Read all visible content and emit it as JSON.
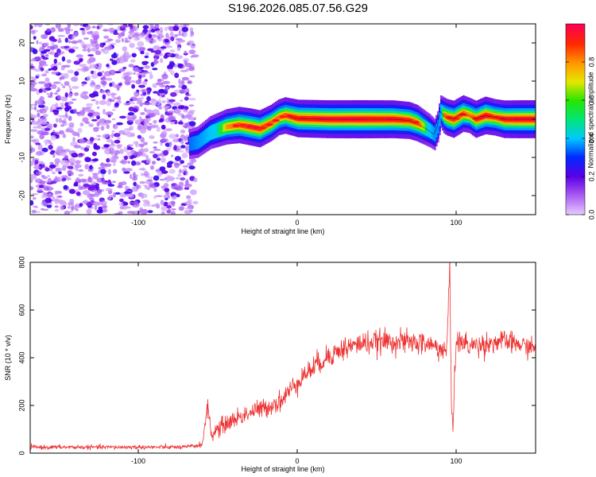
{
  "title": "S196.2026.085.07.56.G29",
  "chart_data": [
    {
      "type": "heatmap",
      "name": "spectrogram",
      "xlabel": "Height of straight line (km)",
      "ylabel": "Frequency (Hz)",
      "xlim": [
        -168,
        150
      ],
      "ylim": [
        -25,
        25
      ],
      "xticks": [
        -100,
        0,
        100
      ],
      "yticks": [
        -20,
        -10,
        0,
        10,
        20
      ],
      "noise_region": {
        "x_range": [
          -168,
          -66
        ],
        "y_range": [
          -25,
          25
        ],
        "typical_amplitude": [
          0.05,
          0.25
        ]
      },
      "ridge": {
        "x": [
          -68,
          -63,
          -55,
          -45,
          -37,
          -30,
          -24,
          -17,
          -12,
          -8,
          0,
          20,
          40,
          60,
          70,
          75,
          79,
          83,
          86,
          88,
          90,
          92,
          94,
          98,
          104,
          108,
          112,
          118,
          124,
          130,
          140,
          150
        ],
        "frequency": [
          -6.5,
          -6,
          -3.5,
          -2,
          -1.5,
          -2,
          -2.5,
          -1,
          0.5,
          1,
          0.2,
          0,
          0,
          0,
          -0.3,
          -1,
          -2,
          -3,
          -4,
          -2,
          2,
          1,
          0.5,
          0,
          1.5,
          1,
          0,
          1,
          0.5,
          0,
          0,
          0
        ],
        "amplitude": [
          0.3,
          0.4,
          0.55,
          0.75,
          0.85,
          0.9,
          0.9,
          0.85,
          0.8,
          0.85,
          0.95,
          0.98,
          1.0,
          0.97,
          0.9,
          0.85,
          0.7,
          0.55,
          0.4,
          0.4,
          0.5,
          0.8,
          0.85,
          0.9,
          0.85,
          0.75,
          0.9,
          0.95,
          0.85,
          0.95,
          0.98,
          0.98
        ]
      },
      "colorbar": {
        "label": "Normalized spectral amplitude",
        "ticks": [
          0.0,
          0.2,
          0.4,
          0.6,
          0.8
        ],
        "tick_labels": [
          "0.0",
          "0.2",
          "0.4",
          "0.6",
          "0.8"
        ],
        "range": [
          0,
          1
        ]
      }
    },
    {
      "type": "line",
      "name": "snr",
      "xlabel": "Height of straight line (km)",
      "ylabel": "SNR (10 * v/v)",
      "xlim": [
        -168,
        150
      ],
      "ylim": [
        0,
        800
      ],
      "xticks": [
        -100,
        0,
        100
      ],
      "yticks": [
        0,
        200,
        400,
        600,
        800
      ],
      "color": "#ee3333",
      "series": {
        "x": [
          -168,
          -130,
          -90,
          -70,
          -60,
          -56,
          -54,
          -52,
          -48,
          -40,
          -30,
          -20,
          -10,
          0,
          10,
          20,
          30,
          40,
          60,
          80,
          90,
          94,
          96,
          97,
          98,
          100,
          110,
          130,
          150
        ],
        "y": [
          25,
          25,
          25,
          25,
          35,
          200,
          70,
          90,
          110,
          140,
          170,
          190,
          220,
          300,
          360,
          410,
          440,
          460,
          470,
          460,
          440,
          420,
          780,
          200,
          140,
          470,
          450,
          470,
          440
        ],
        "noise_amplitude": [
          10,
          10,
          10,
          10,
          15,
          40,
          40,
          40,
          40,
          45,
          45,
          45,
          50,
          50,
          55,
          55,
          55,
          55,
          55,
          55,
          55,
          60,
          60,
          60,
          60,
          55,
          55,
          50,
          45
        ]
      }
    }
  ]
}
